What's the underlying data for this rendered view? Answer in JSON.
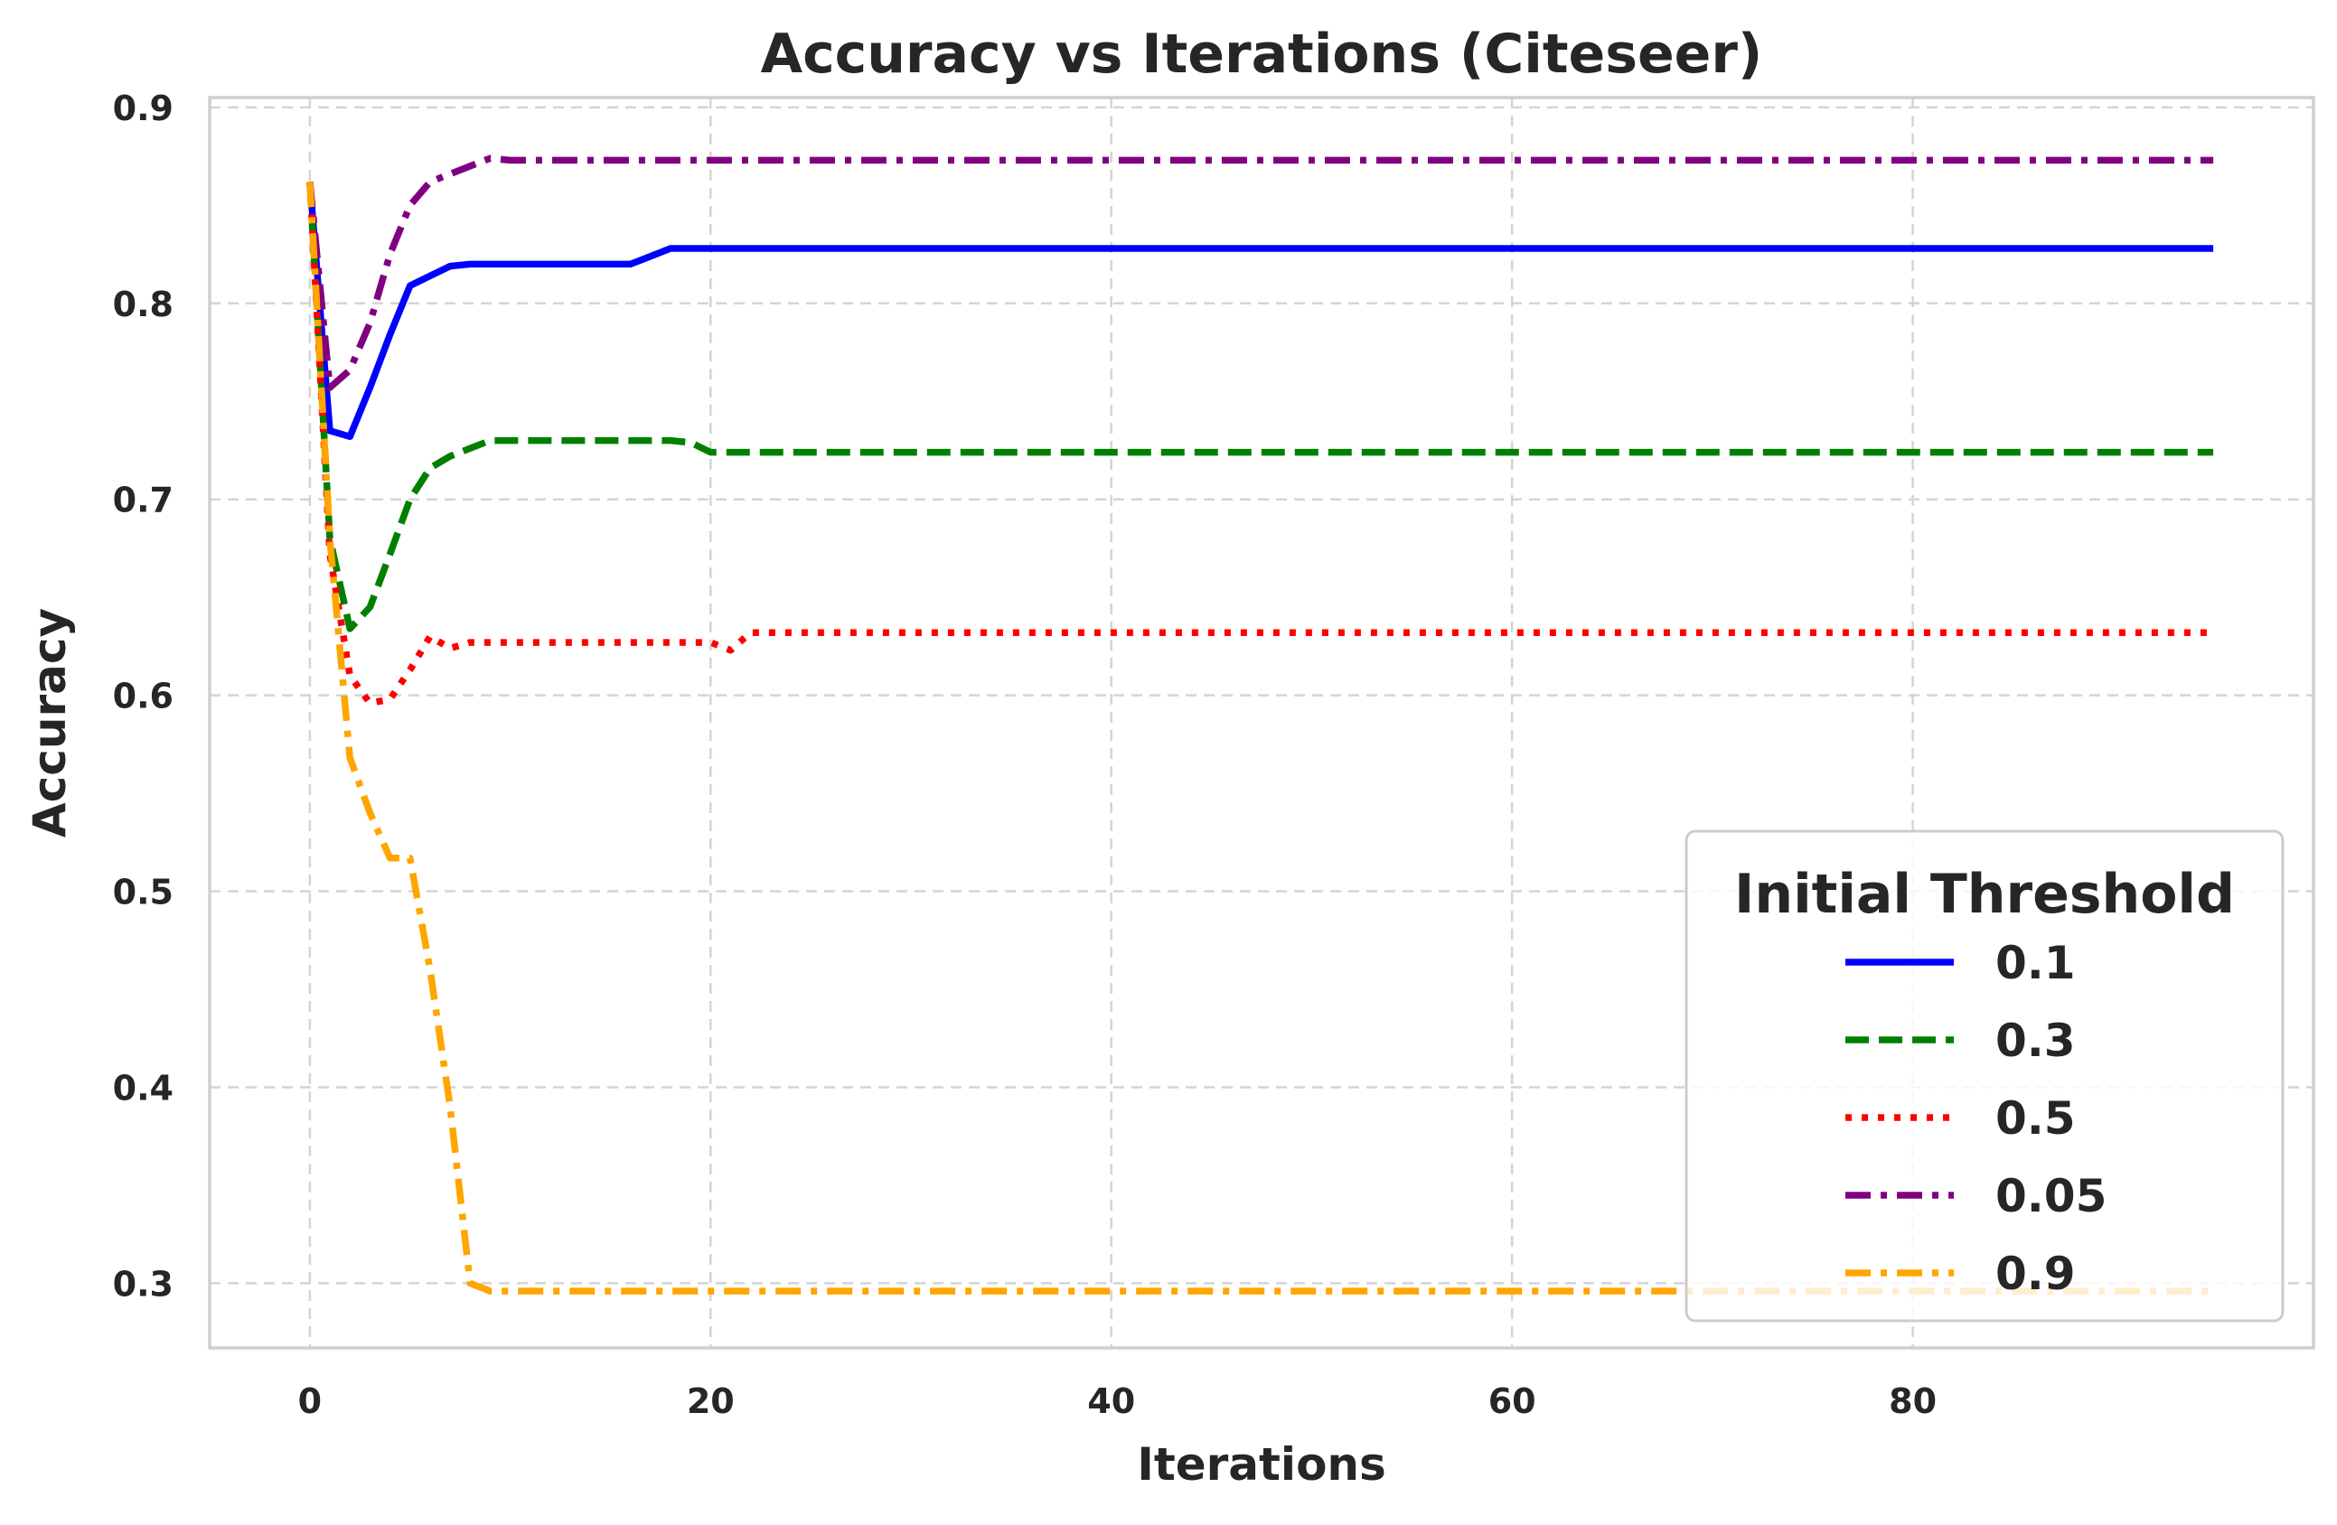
{
  "chart_data": {
    "type": "line",
    "title": "Accuracy vs Iterations (Citeseer)",
    "xlabel": "Iterations",
    "ylabel": "Accuracy",
    "xlim": [
      -5,
      100
    ],
    "ylim": [
      0.267,
      0.905
    ],
    "xticks": [
      0,
      20,
      40,
      60,
      80
    ],
    "yticks": [
      0.3,
      0.4,
      0.5,
      0.6,
      0.7,
      0.8,
      0.9
    ],
    "xtick_labels": [
      "0",
      "20",
      "40",
      "60",
      "80"
    ],
    "ytick_labels": [
      "0.3",
      "0.4",
      "0.5",
      "0.6",
      "0.7",
      "0.8",
      "0.9"
    ],
    "grid": true,
    "legend": {
      "title": "Initial Threshold",
      "placement": "lower-right"
    },
    "series": [
      {
        "name": "0.1",
        "color": "#0000ff",
        "style": "solid",
        "x": [
          0,
          1,
          2,
          3,
          4,
          5,
          6,
          7,
          8,
          9,
          10,
          12,
          14,
          16,
          17,
          18,
          20,
          40,
          60,
          80,
          95
        ],
        "y": [
          0.862,
          0.735,
          0.732,
          0.757,
          0.784,
          0.809,
          0.814,
          0.819,
          0.82,
          0.82,
          0.82,
          0.82,
          0.82,
          0.82,
          0.824,
          0.828,
          0.828,
          0.828,
          0.828,
          0.828,
          0.828
        ]
      },
      {
        "name": "0.3",
        "color": "#008000",
        "style": "dashed",
        "x": [
          0,
          1,
          2,
          3,
          4,
          5,
          6,
          7,
          8,
          9,
          10,
          12,
          14,
          16,
          18,
          19,
          20,
          40,
          60,
          80,
          95
        ],
        "y": [
          0.862,
          0.68,
          0.634,
          0.645,
          0.672,
          0.7,
          0.716,
          0.722,
          0.726,
          0.73,
          0.73,
          0.73,
          0.73,
          0.73,
          0.73,
          0.729,
          0.724,
          0.724,
          0.724,
          0.724,
          0.724
        ]
      },
      {
        "name": "0.5",
        "color": "#ff0000",
        "style": "dotted",
        "x": [
          0,
          1,
          2,
          3,
          4,
          5,
          6,
          7,
          8,
          10,
          12,
          14,
          16,
          18,
          20,
          21,
          22,
          40,
          60,
          80,
          95
        ],
        "y": [
          0.862,
          0.672,
          0.61,
          0.596,
          0.598,
          0.613,
          0.63,
          0.624,
          0.627,
          0.627,
          0.627,
          0.627,
          0.627,
          0.627,
          0.627,
          0.623,
          0.632,
          0.632,
          0.632,
          0.632,
          0.632
        ]
      },
      {
        "name": "0.05",
        "color": "#800080",
        "style": "dashdot",
        "x": [
          0,
          1,
          2,
          3,
          4,
          5,
          6,
          7,
          8,
          9,
          10,
          20,
          40,
          60,
          80,
          95
        ],
        "y": [
          0.862,
          0.757,
          0.766,
          0.79,
          0.825,
          0.85,
          0.862,
          0.866,
          0.87,
          0.874,
          0.873,
          0.873,
          0.873,
          0.873,
          0.873,
          0.873
        ]
      },
      {
        "name": "0.9",
        "color": "#ffa500",
        "style": "dashdot",
        "x": [
          0,
          1,
          2,
          3,
          4,
          5,
          6,
          7,
          8,
          9,
          10,
          20,
          40,
          60,
          80,
          95
        ],
        "y": [
          0.862,
          0.68,
          0.568,
          0.54,
          0.517,
          0.517,
          0.46,
          0.39,
          0.3,
          0.296,
          0.296,
          0.296,
          0.296,
          0.296,
          0.296,
          0.296
        ]
      }
    ]
  }
}
